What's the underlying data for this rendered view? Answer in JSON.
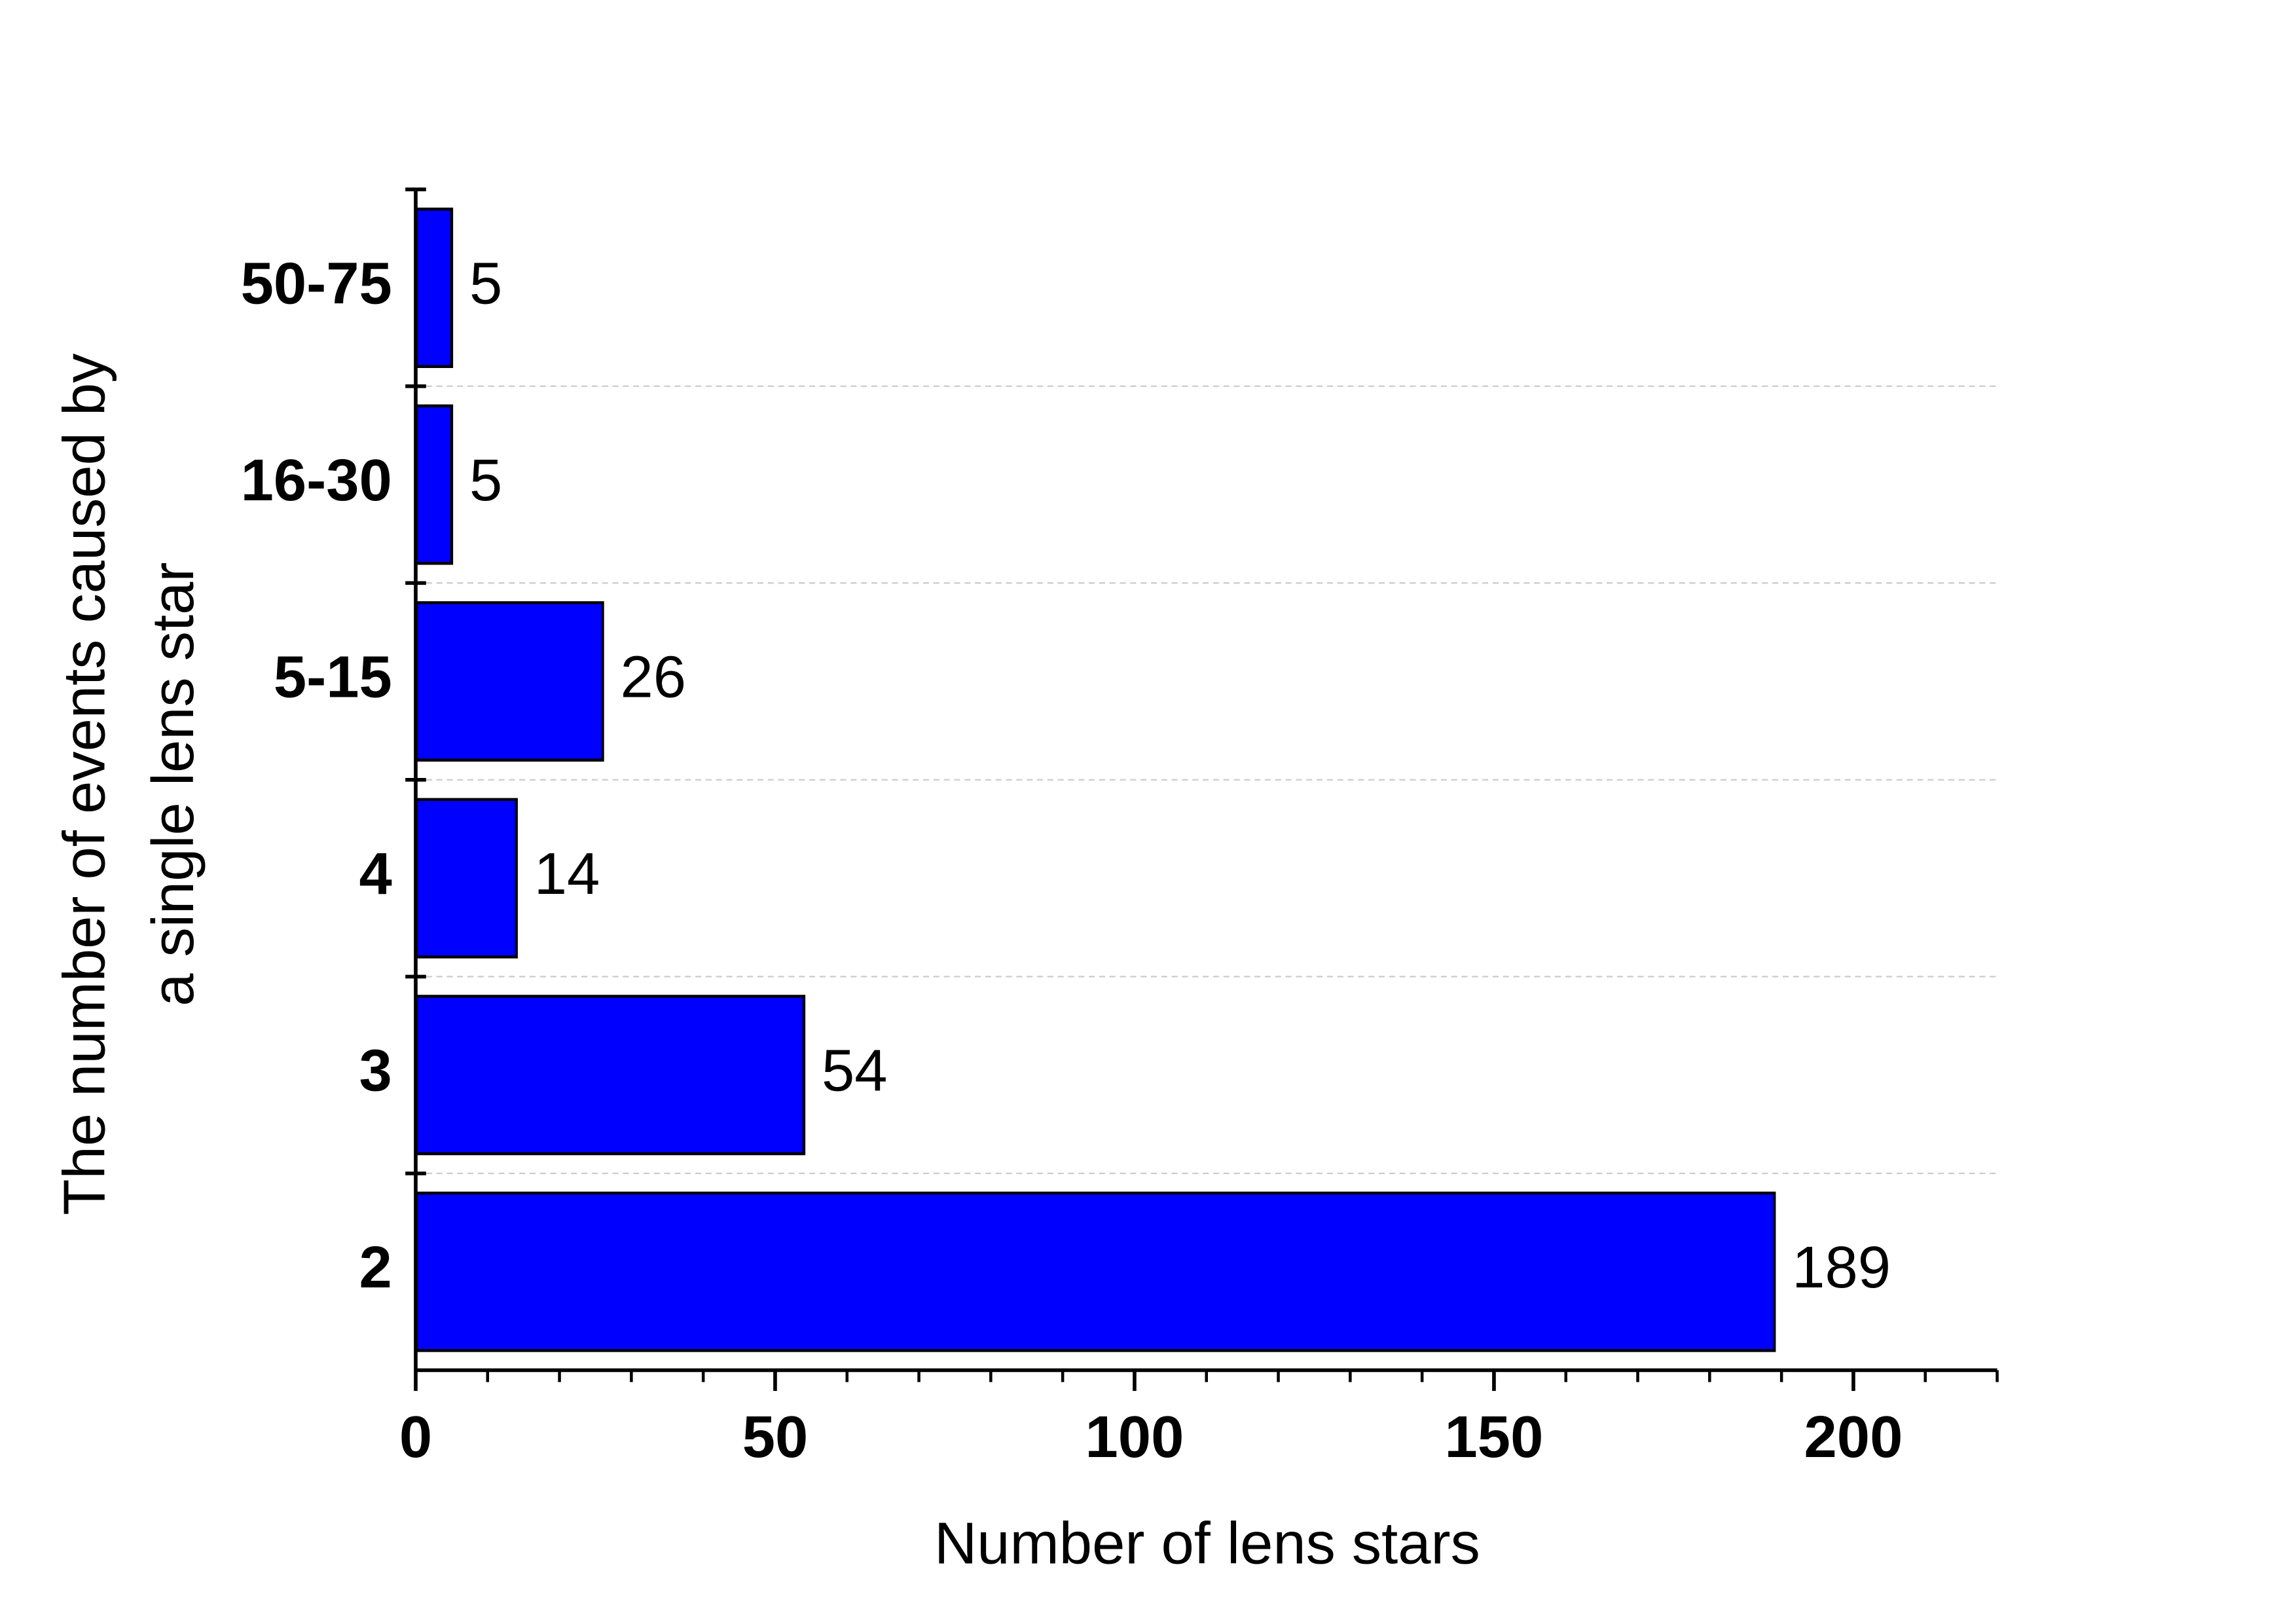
{
  "chart_data": {
    "type": "barh",
    "y_label": [
      "The number of events caused by",
      "a single lens star"
    ],
    "x_label": "Number of lens stars",
    "categories": [
      "2",
      "3",
      "4",
      "5-15",
      "16-30",
      "50-75"
    ],
    "values": [
      189,
      54,
      14,
      26,
      5,
      5
    ],
    "color": "#0000ff",
    "xlim": [
      0,
      220
    ],
    "xticks": [
      0,
      50,
      100,
      150,
      200
    ],
    "grid": true
  }
}
